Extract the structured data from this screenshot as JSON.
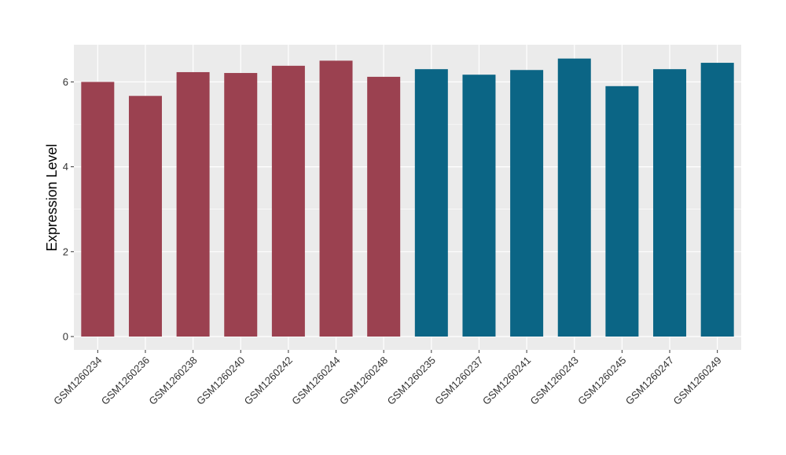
{
  "chart_data": {
    "type": "bar",
    "ylabel": "Expression Level",
    "xlabel": "",
    "title": "",
    "ylim": [
      0,
      6.9
    ],
    "yticks": [
      0,
      2,
      4,
      6
    ],
    "ytick_labels": [
      "0",
      "2",
      "4",
      "6"
    ],
    "grid": true,
    "legend": "none",
    "colors": {
      "group_a": "#9b4150",
      "group_b": "#0b6585",
      "panel_bg": "#ebebeb",
      "grid": "#ffffff"
    },
    "categories": [
      "GSM1260234",
      "GSM1260236",
      "GSM1260238",
      "GSM1260240",
      "GSM1260242",
      "GSM1260244",
      "GSM1260248",
      "GSM1260235",
      "GSM1260237",
      "GSM1260241",
      "GSM1260243",
      "GSM1260245",
      "GSM1260247",
      "GSM1260249"
    ],
    "values": [
      6.0,
      5.67,
      6.23,
      6.21,
      6.38,
      6.5,
      6.12,
      6.3,
      6.17,
      6.28,
      6.55,
      5.9,
      6.3,
      6.45
    ],
    "bar_groups": [
      "a",
      "a",
      "a",
      "a",
      "a",
      "a",
      "a",
      "b",
      "b",
      "b",
      "b",
      "b",
      "b",
      "b"
    ]
  }
}
